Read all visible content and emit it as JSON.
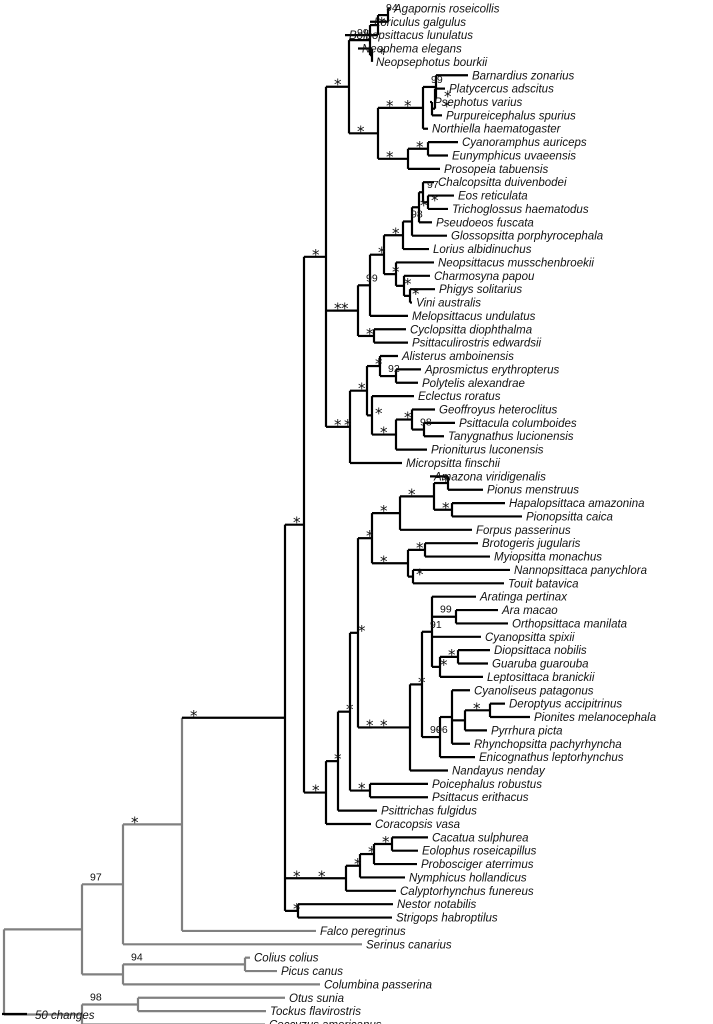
{
  "tree": {
    "taxa": [
      "Agapornis roseicollis",
      "Loriculus galgulus",
      "Bolbopsittacus lunulatus",
      "Neophema elegans",
      "Neopsephotus bourkii",
      "Barnardius zonarius",
      "Platycercus adscitus",
      "Psephotus varius",
      "Purpureicephalus spurius",
      "Northiella haematogaster",
      "Cyanoramphus auriceps",
      "Eunymphicus uvaeensis",
      "Prosopeia tabuensis",
      "Chalcopsitta duivenbodei",
      "Eos reticulata",
      "Trichoglossus haematodus",
      "Pseudoeos fuscata",
      "Glossopsitta porphyrocephala",
      "Lorius albidinuchus",
      "Neopsittacus musschenbroekii",
      "Charmosyna papou",
      "Phigys solitarius",
      "Vini australis",
      "Melopsittacus undulatus",
      "Cyclopsitta diophthalma",
      "Psittaculirostris edwardsii",
      "Alisterus amboinensis",
      "Aprosmictus erythropterus",
      "Polytelis alexandrae",
      "Eclectus roratus",
      "Geoffroyus heteroclitus",
      "Psittacula columboides",
      "Tanygnathus lucionensis",
      "Prioniturus luconensis",
      "Micropsitta finschii",
      "Amazona viridigenalis",
      "Pionus menstruus",
      "Hapalopsittaca amazonina",
      "Pionopsitta caica",
      "Forpus passerinus",
      "Brotogeris jugularis",
      "Myiopsitta monachus",
      "Nannopsittaca panychlora",
      "Touit batavica",
      "Aratinga pertinax",
      "Ara macao",
      "Orthopsittaca manilata",
      "Cyanopsitta spixii",
      "Diopsittaca nobilis",
      "Guaruba guarouba",
      "Leptosittaca branickii",
      "Cyanoliseus patagonus",
      "Deroptyus accipitrinus",
      "Pionites melanocephala",
      "Pyrrhura picta",
      "Rhynchopsitta pachyrhyncha",
      "Enicognathus leptorhynchus",
      "Nandayus nenday",
      "Poicephalus robustus",
      "Psittacus erithacus",
      "Psittrichas fulgidus",
      "Coracopsis vasa",
      "Cacatua sulphurea",
      "Eolophus roseicapillus",
      "Probosciger aterrimus",
      "Nymphicus hollandicus",
      "Calyptorhynchus funereus",
      "Nestor notabilis",
      "Strigops habroptilus",
      "Falco peregrinus",
      "Serinus canarius",
      "Colius colius",
      "Picus canus",
      "Columbina passerina",
      "Otus sunia",
      "Tockus flavirostris",
      "Coccyzus americanus"
    ],
    "support_star": "*",
    "numeric_supports": [
      "94",
      "99",
      "99",
      "97",
      "98",
      "99",
      "92",
      "98",
      "91",
      "99",
      "90",
      "96",
      "97",
      "94",
      "98"
    ],
    "scale_bar": {
      "label": "50 changes"
    },
    "colors": {
      "ingroup": "#000000",
      "outgroup": "#808080",
      "text": "#111111"
    }
  }
}
